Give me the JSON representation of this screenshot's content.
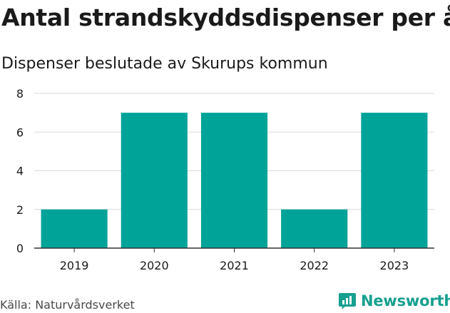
{
  "title": "Antal strandskyddsdispenser per år",
  "subtitle": "Dispenser beslutade av Skurups kommun",
  "source": "Källa: Naturvårdsverket",
  "brand": {
    "name": "Newsworthy",
    "icon": "newsworthy-logo-icon"
  },
  "colors": {
    "bar": "#00a398",
    "grid": "#d9d9d9",
    "axis": "#333333",
    "brand": "#16a08f"
  },
  "chart_data": {
    "type": "bar",
    "title": "Antal strandskyddsdispenser per år",
    "subtitle": "Dispenser beslutade av Skurups kommun",
    "categories": [
      "2019",
      "2020",
      "2021",
      "2022",
      "2023"
    ],
    "values": [
      2,
      7,
      7,
      2,
      7
    ],
    "yticks": [
      0,
      2,
      4,
      6,
      8
    ],
    "ylim": [
      0,
      8
    ],
    "xlabel": "",
    "ylabel": "",
    "grid": true
  }
}
